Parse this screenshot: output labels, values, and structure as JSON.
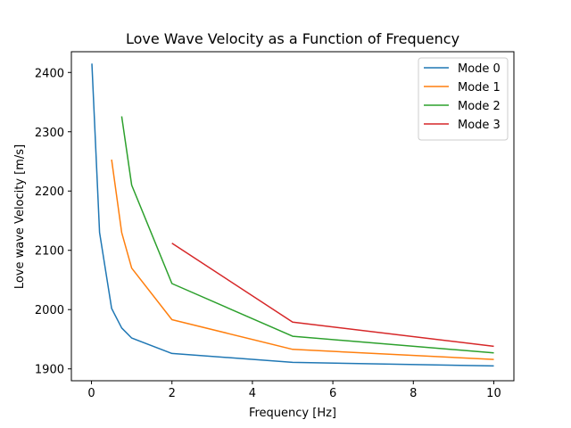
{
  "chart_data": {
    "type": "line",
    "title": "Love Wave Velocity as a Function of Frequency",
    "xlabel": "Frequency [Hz]",
    "ylabel": "Love wave Velocity [m/s]",
    "xlim": [
      -0.5,
      10.5
    ],
    "ylim": [
      1880,
      2435
    ],
    "xticks": [
      0,
      2,
      4,
      6,
      8,
      10
    ],
    "yticks": [
      1900,
      2000,
      2100,
      2200,
      2300,
      2400
    ],
    "grid": false,
    "legend_position": "top-right",
    "series": [
      {
        "name": "Mode 0",
        "color": "#1f77b4",
        "x": [
          0.01,
          0.2,
          0.5,
          0.75,
          1,
          2,
          5,
          10
        ],
        "y": [
          2415,
          2130,
          2002,
          1969,
          1952,
          1926,
          1911,
          1905
        ]
      },
      {
        "name": "Mode 1",
        "color": "#ff7f0e",
        "x": [
          0.5,
          0.75,
          1,
          2,
          5,
          10
        ],
        "y": [
          2253,
          2130,
          2070,
          1983,
          1933,
          1916
        ]
      },
      {
        "name": "Mode 2",
        "color": "#2ca02c",
        "x": [
          0.75,
          1,
          2,
          5,
          10
        ],
        "y": [
          2326,
          2210,
          2044,
          1955,
          1927
        ]
      },
      {
        "name": "Mode 3",
        "color": "#d62728",
        "x": [
          2,
          5,
          10
        ],
        "y": [
          2112,
          1979,
          1938
        ]
      }
    ]
  }
}
